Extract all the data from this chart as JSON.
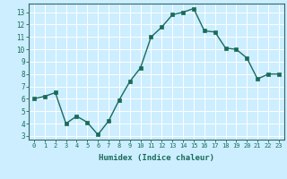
{
  "x": [
    0,
    1,
    2,
    3,
    4,
    5,
    6,
    7,
    8,
    9,
    10,
    11,
    12,
    13,
    14,
    15,
    16,
    17,
    18,
    19,
    20,
    21,
    22,
    23
  ],
  "y": [
    6,
    6.2,
    6.5,
    4.0,
    4.6,
    4.1,
    3.1,
    4.2,
    5.9,
    7.4,
    8.5,
    11.0,
    11.8,
    12.8,
    13.0,
    13.3,
    11.5,
    11.4,
    10.1,
    10.0,
    9.3,
    7.6,
    8.0,
    8.0
  ],
  "xlabel": "Humidex (Indice chaleur)",
  "ylabel": "",
  "xlim": [
    -0.5,
    23.5
  ],
  "ylim": [
    2.7,
    13.7
  ],
  "yticks": [
    3,
    4,
    5,
    6,
    7,
    8,
    9,
    10,
    11,
    12,
    13
  ],
  "xticks": [
    0,
    1,
    2,
    3,
    4,
    5,
    6,
    7,
    8,
    9,
    10,
    11,
    12,
    13,
    14,
    15,
    16,
    17,
    18,
    19,
    20,
    21,
    22,
    23
  ],
  "line_color": "#1a6b5a",
  "marker_color": "#1a6b5a",
  "bg_color": "#cceeff",
  "grid_color": "#ffffff",
  "axis_color": "#336666",
  "tick_color": "#1a6b5a",
  "label_color": "#1a6b5a"
}
